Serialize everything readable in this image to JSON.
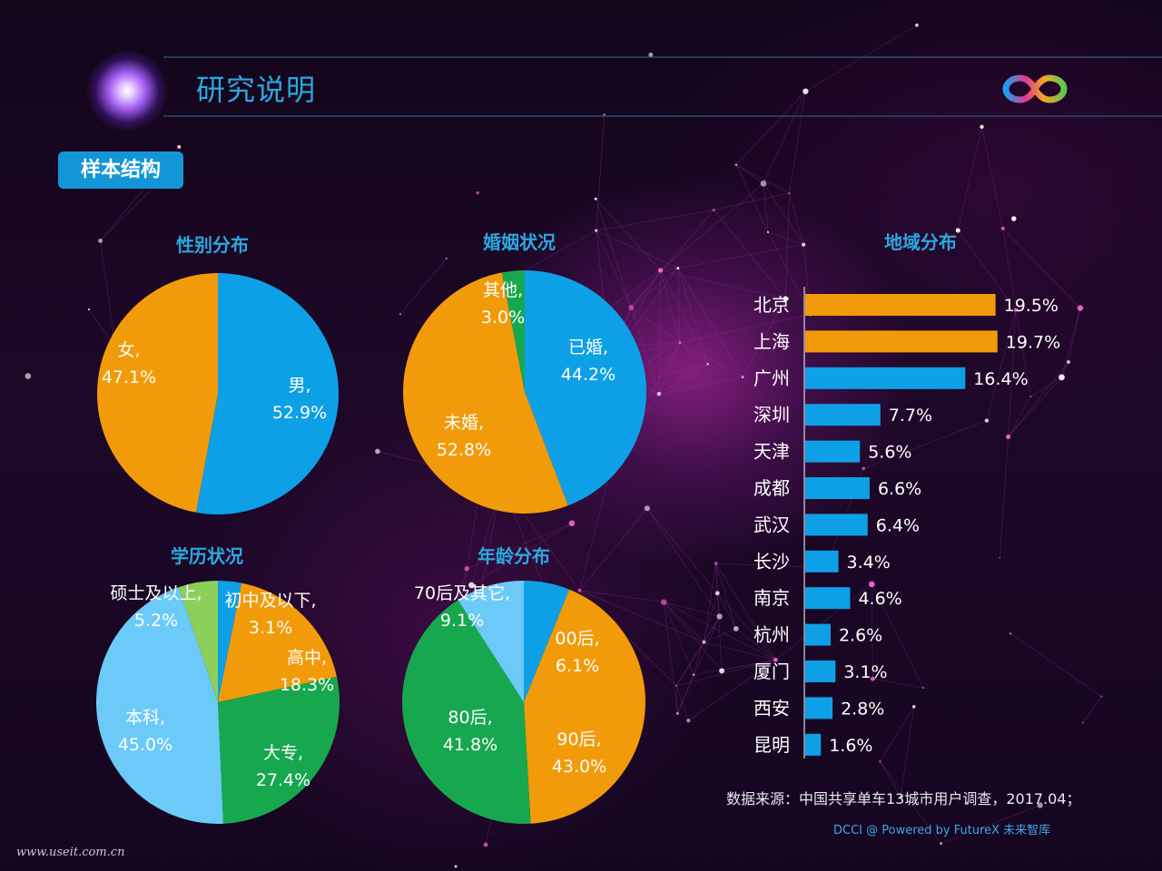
{
  "header": {
    "title": "研究说明",
    "section_tag": "样本结构"
  },
  "footer": {
    "source": "数据来源：中国共享单车13城市用户调查，2017.04；",
    "credit": "DCCI @ Powered by FutureX 未来智库",
    "watermark": "www.useit.com.cn"
  },
  "colors": {
    "orange": "#f29b0a",
    "blue": "#0ea0e6",
    "green": "#17a84f",
    "light_blue": "#6ccaf8",
    "light_green": "#8cd05a",
    "title_blue": "#2aa8e0"
  },
  "chart_data": [
    {
      "type": "pie",
      "title": "性别分布",
      "slices": [
        {
          "name": "男",
          "value": 52.9,
          "label": "52.9%",
          "color": "#0ea0e6"
        },
        {
          "name": "女",
          "value": 47.1,
          "label": "47.1%",
          "color": "#f29b0a"
        }
      ]
    },
    {
      "type": "pie",
      "title": "婚姻状况",
      "slices": [
        {
          "name": "已婚",
          "value": 44.2,
          "label": "44.2%",
          "color": "#0ea0e6"
        },
        {
          "name": "未婚",
          "value": 52.8,
          "label": "52.8%",
          "color": "#f29b0a"
        },
        {
          "name": "其他",
          "value": 3.0,
          "label": "3.0%",
          "color": "#17a84f"
        }
      ]
    },
    {
      "type": "pie",
      "title": "学历状况",
      "slices": [
        {
          "name": "初中及以下",
          "value": 3.1,
          "label": "3.1%",
          "color": "#0ea0e6"
        },
        {
          "name": "高中",
          "value": 18.3,
          "label": "18.3%",
          "color": "#f29b0a"
        },
        {
          "name": "大专",
          "value": 27.4,
          "label": "27.4%",
          "color": "#17a84f"
        },
        {
          "name": "本科",
          "value": 45.0,
          "label": "45.0%",
          "color": "#6ccaf8"
        },
        {
          "name": "硕士及以上",
          "value": 5.2,
          "label": "5.2%",
          "color": "#8cd05a"
        }
      ]
    },
    {
      "type": "pie",
      "title": "年龄分布",
      "slices": [
        {
          "name": "00后",
          "value": 6.1,
          "label": "6.1%",
          "color": "#0ea0e6"
        },
        {
          "name": "90后",
          "value": 43.0,
          "label": "43.0%",
          "color": "#f29b0a"
        },
        {
          "name": "80后",
          "value": 41.8,
          "label": "41.8%",
          "color": "#17a84f"
        },
        {
          "name": "70后及其它",
          "value": 9.1,
          "label": "9.1%",
          "color": "#6ccaf8"
        }
      ]
    },
    {
      "type": "bar",
      "orientation": "horizontal",
      "title": "地域分布",
      "categories": [
        "北京",
        "上海",
        "广州",
        "深圳",
        "天津",
        "成都",
        "武汉",
        "长沙",
        "南京",
        "杭州",
        "厦门",
        "西安",
        "昆明"
      ],
      "values": [
        19.5,
        19.7,
        16.4,
        7.7,
        5.6,
        6.6,
        6.4,
        3.4,
        4.6,
        2.6,
        3.1,
        2.8,
        1.6
      ],
      "value_labels": [
        "19.5%",
        "19.7%",
        "16.4%",
        "7.7%",
        "5.6%",
        "6.6%",
        "6.4%",
        "3.4%",
        "4.6%",
        "2.6%",
        "3.1%",
        "2.8%",
        "1.6%"
      ],
      "highlight_colors": [
        "#f29b0a",
        "#f29b0a"
      ],
      "default_color": "#0ea0e6"
    }
  ]
}
